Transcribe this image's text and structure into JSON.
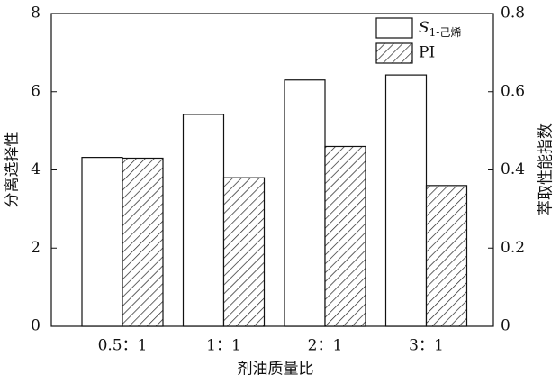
{
  "chart_data": {
    "type": "bar",
    "x_label": "剂油质量比",
    "y_label": "分离选择性",
    "y2_label": "萃取性能指数",
    "categories": [
      "0.5：1",
      "1：1",
      "2：1",
      "3：1"
    ],
    "series": [
      {
        "name": "S1-己烯",
        "color": "#ffffff",
        "values": [
          4.32,
          5.42,
          6.3,
          6.43
        ]
      },
      {
        "name": "PI",
        "color": "hatch",
        "axis": "y2",
        "values": [
          0.43,
          0.38,
          0.46,
          0.36
        ]
      }
    ],
    "ylim": [
      0,
      8
    ],
    "yticks": [
      0,
      2,
      4,
      6,
      8
    ],
    "y2lim": [
      0,
      0.8
    ],
    "y2ticks": [
      0,
      0.2,
      0.4,
      0.6,
      0.8
    ],
    "legend": "upper right"
  }
}
